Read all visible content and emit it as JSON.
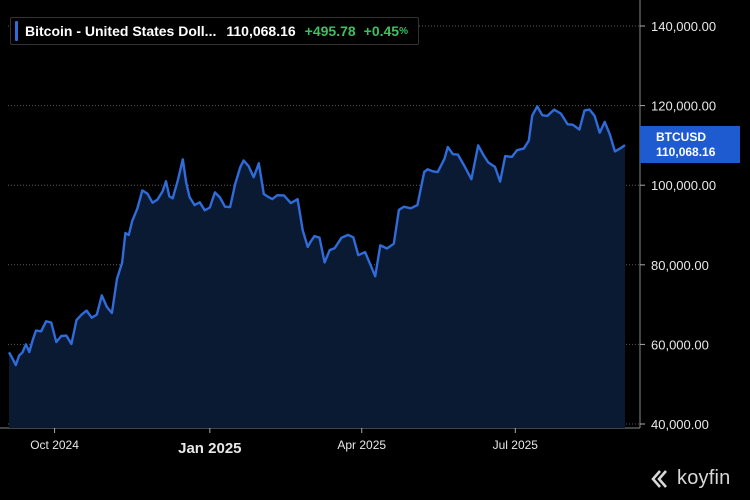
{
  "legend": {
    "name": "Bitcoin - United States Doll...",
    "value": "110,068.16",
    "change": "+495.78",
    "pct": "+0.45",
    "pct_sign": "%"
  },
  "price_tag": {
    "symbol": "BTCUSD",
    "value": "110,068.16"
  },
  "logo": {
    "text": "koyfin"
  },
  "colors": {
    "line": "#2f6bd9",
    "fill": "#0b1a33",
    "up": "#3fbf5f",
    "tag": "#1f5bd0"
  },
  "chart_data": {
    "type": "area",
    "title": "",
    "xlabel": "",
    "ylabel": "",
    "ylim": [
      40000,
      145000
    ],
    "xlim": [
      "2024-09-04",
      "2025-09-04"
    ],
    "grid": true,
    "legend_placement": "top-left",
    "y_ticks": [
      {
        "value": 40000,
        "label": "40,000.00"
      },
      {
        "value": 60000,
        "label": "60,000.00"
      },
      {
        "value": 80000,
        "label": "80,000.00"
      },
      {
        "value": 100000,
        "label": "100,000.00"
      },
      {
        "value": 120000,
        "label": "120,000.00"
      },
      {
        "value": 140000,
        "label": "140,000.00"
      }
    ],
    "x_ticks": [
      {
        "date": "2024-10-01",
        "label": "Oct 2024",
        "bold": false
      },
      {
        "date": "2025-01-01",
        "label": "Jan 2025",
        "bold": true
      },
      {
        "date": "2025-04-01",
        "label": "Apr 2025",
        "bold": false
      },
      {
        "date": "2025-07-01",
        "label": "Jul 2025",
        "bold": false
      }
    ],
    "series": [
      {
        "x": [
          "2024-09-04",
          "2024-09-06",
          "2024-09-08",
          "2024-09-10",
          "2024-09-12",
          "2024-09-14",
          "2024-09-16",
          "2024-09-18",
          "2024-09-20",
          "2024-09-23",
          "2024-09-26",
          "2024-09-29",
          "2024-10-02",
          "2024-10-05",
          "2024-10-08",
          "2024-10-11",
          "2024-10-14",
          "2024-10-17",
          "2024-10-20",
          "2024-10-23",
          "2024-10-26",
          "2024-10-29",
          "2024-11-01",
          "2024-11-04",
          "2024-11-07",
          "2024-11-10",
          "2024-11-12",
          "2024-11-14",
          "2024-11-16",
          "2024-11-19",
          "2024-11-22",
          "2024-11-25",
          "2024-11-28",
          "2024-12-01",
          "2024-12-04",
          "2024-12-06",
          "2024-12-08",
          "2024-12-10",
          "2024-12-13",
          "2024-12-16",
          "2024-12-18",
          "2024-12-20",
          "2024-12-23",
          "2024-12-26",
          "2024-12-29",
          "2025-01-01",
          "2025-01-04",
          "2025-01-07",
          "2025-01-10",
          "2025-01-13",
          "2025-01-16",
          "2025-01-19",
          "2025-01-21",
          "2025-01-24",
          "2025-01-27",
          "2025-01-30",
          "2025-02-02",
          "2025-02-04",
          "2025-02-07",
          "2025-02-10",
          "2025-02-14",
          "2025-02-18",
          "2025-02-22",
          "2025-02-25",
          "2025-02-28",
          "2025-03-02",
          "2025-03-04",
          "2025-03-07",
          "2025-03-10",
          "2025-03-13",
          "2025-03-16",
          "2025-03-20",
          "2025-03-24",
          "2025-03-27",
          "2025-03-30",
          "2025-04-03",
          "2025-04-07",
          "2025-04-09",
          "2025-04-12",
          "2025-04-16",
          "2025-04-20",
          "2025-04-23",
          "2025-04-26",
          "2025-04-30",
          "2025-05-04",
          "2025-05-08",
          "2025-05-10",
          "2025-05-13",
          "2025-05-16",
          "2025-05-20",
          "2025-05-22",
          "2025-05-25",
          "2025-05-28",
          "2025-06-01",
          "2025-06-05",
          "2025-06-09",
          "2025-06-12",
          "2025-06-15",
          "2025-06-19",
          "2025-06-22",
          "2025-06-25",
          "2025-06-29",
          "2025-07-02",
          "2025-07-06",
          "2025-07-09",
          "2025-07-11",
          "2025-07-14",
          "2025-07-17",
          "2025-07-20",
          "2025-07-24",
          "2025-07-28",
          "2025-08-01",
          "2025-08-04",
          "2025-08-08",
          "2025-08-11",
          "2025-08-14",
          "2025-08-17",
          "2025-08-20",
          "2025-08-23",
          "2025-08-26",
          "2025-08-29",
          "2025-09-01",
          "2025-09-04"
        ],
        "values": [
          58000,
          56500,
          54800,
          57200,
          58000,
          60000,
          58100,
          61000,
          63500,
          63300,
          65800,
          65500,
          60600,
          62100,
          62200,
          60100,
          66100,
          67500,
          68500,
          66700,
          67500,
          72300,
          69400,
          67900,
          76500,
          80500,
          88000,
          87500,
          91000,
          94100,
          98700,
          97900,
          95600,
          96400,
          98500,
          101000,
          97200,
          96700,
          101200,
          106500,
          100600,
          97000,
          95000,
          95700,
          93700,
          94400,
          98200,
          96900,
          94600,
          94500,
          100200,
          104500,
          106200,
          104800,
          102000,
          105500,
          97800,
          97200,
          96500,
          97500,
          97400,
          95500,
          96500,
          88700,
          84500,
          86000,
          87200,
          86800,
          80600,
          83700,
          84200,
          86800,
          87500,
          86900,
          82400,
          83200,
          79200,
          77100,
          84900,
          84100,
          85300,
          93800,
          94600,
          94200,
          95000,
          103300,
          104000,
          103500,
          103300,
          106600,
          109600,
          107800,
          107700,
          104700,
          101500,
          110000,
          107700,
          105700,
          104600,
          100900,
          107300,
          107100,
          108800,
          109200,
          111200,
          117500,
          119800,
          117600,
          117400,
          119000,
          118000,
          115300,
          115200,
          114000,
          118800,
          119000,
          117400,
          113200,
          115900,
          112800,
          108500,
          109200,
          110068
        ]
      }
    ]
  }
}
